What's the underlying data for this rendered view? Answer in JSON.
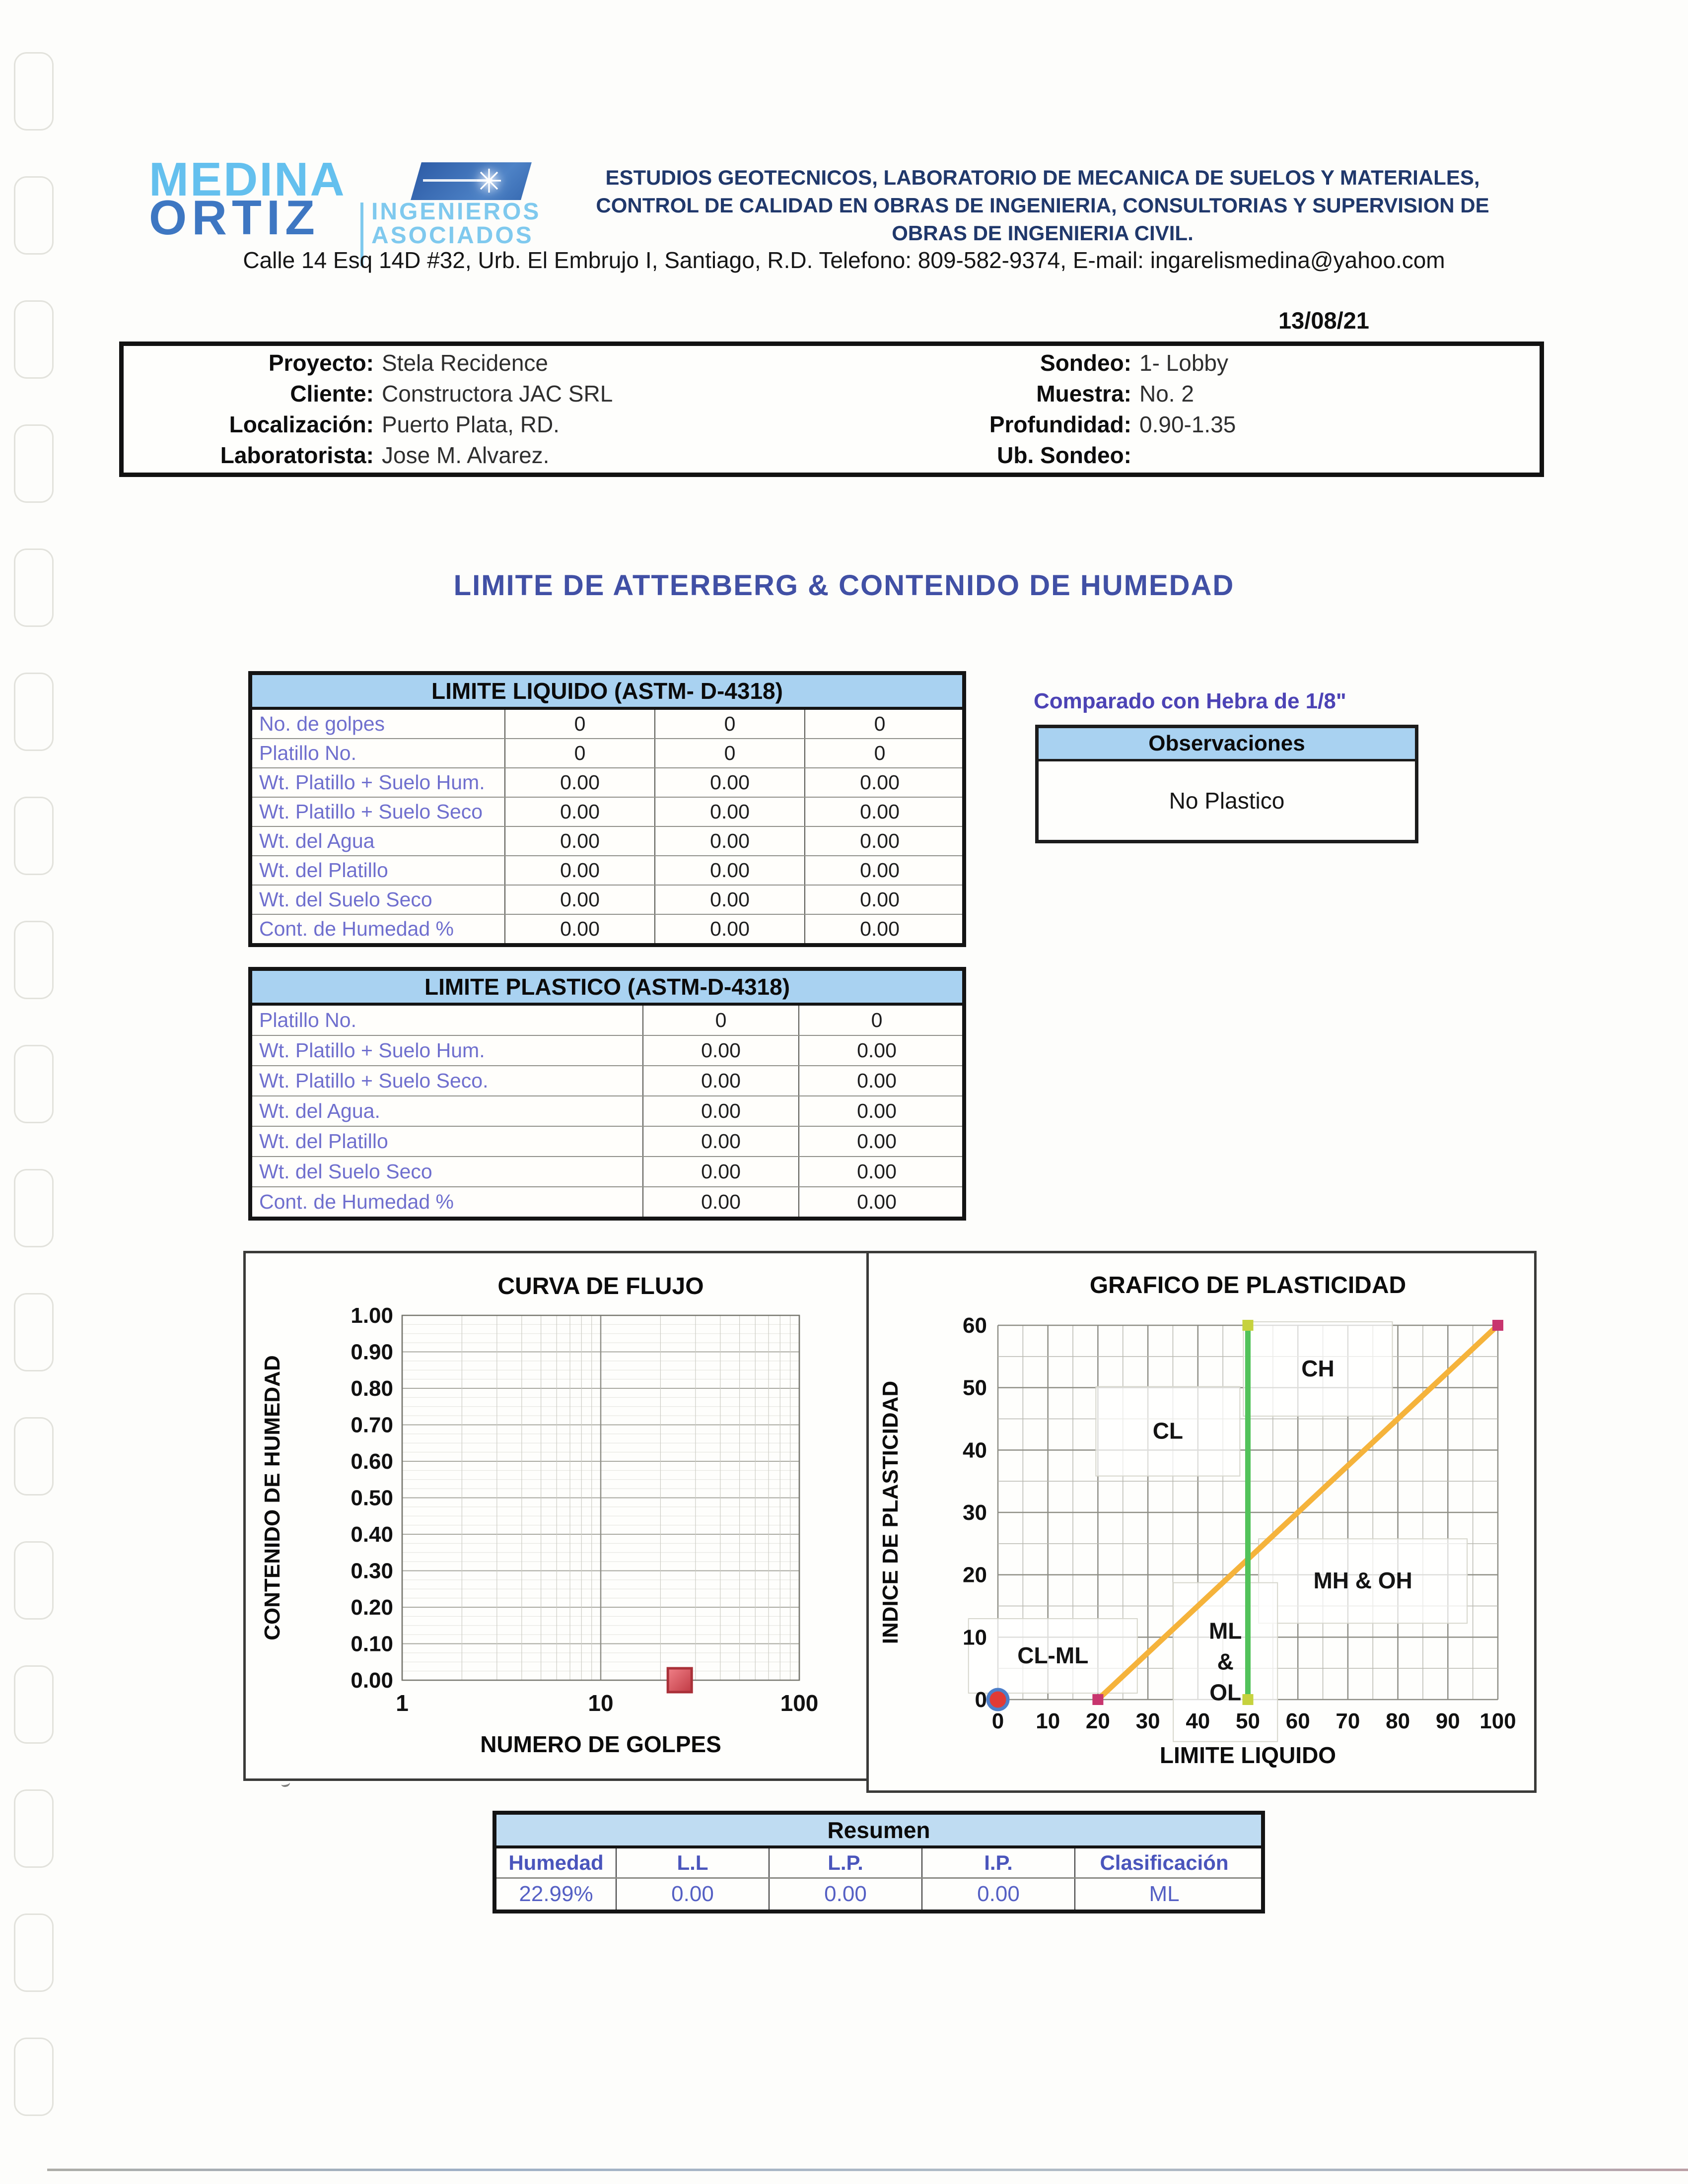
{
  "document": {
    "date": "13/08/21",
    "title": "LIMITE DE ATTERBERG & CONTENIDO DE HUMEDAD"
  },
  "logo": {
    "name_top": "MEDINA",
    "name_bottom": "ORTIZ",
    "subtitle_top": "INGENIEROS",
    "subtitle_bottom": "ASOCIADOS",
    "star_icon": "starburst"
  },
  "header": {
    "tagline_line1": "ESTUDIOS GEOTECNICOS, LABORATORIO DE MECANICA DE SUELOS Y MATERIALES,",
    "tagline_line2": "CONTROL DE CALIDAD EN OBRAS DE INGENIERIA, CONSULTORIAS Y SUPERVISION DE",
    "tagline_line3": "OBRAS DE INGENIERIA CIVIL.",
    "address": "Calle 14 Esq 14D #32, Urb. El Embrujo I, Santiago, R.D. Telefono: 809-582-9374, E-mail: ingarelismedina@yahoo.com"
  },
  "project_info": {
    "left": [
      {
        "label": "Proyecto:",
        "value": "Stela Recidence"
      },
      {
        "label": "Cliente:",
        "value": "Constructora JAC SRL"
      },
      {
        "label": "Localización:",
        "value": "Puerto Plata, RD."
      },
      {
        "label": "Laboratorista:",
        "value": "Jose M. Alvarez."
      }
    ],
    "right": [
      {
        "label": "Sondeo:",
        "value": "1- Lobby"
      },
      {
        "label": "Muestra:",
        "value": "No. 2"
      },
      {
        "label": "Profundidad:",
        "value": "0.90-1.35"
      },
      {
        "label": "Ub. Sondeo:",
        "value": ""
      }
    ]
  },
  "liquid_limit_table": {
    "title": "LIMITE LIQUIDO (ASTM- D-4318)",
    "rows": [
      {
        "label": "No. de golpes",
        "values": [
          "0",
          "0",
          "0"
        ]
      },
      {
        "label": "Platillo No.",
        "values": [
          "0",
          "0",
          "0"
        ]
      },
      {
        "label": "Wt. Platillo + Suelo Hum.",
        "values": [
          "0.00",
          "0.00",
          "0.00"
        ]
      },
      {
        "label": "Wt. Platillo + Suelo Seco",
        "values": [
          "0.00",
          "0.00",
          "0.00"
        ]
      },
      {
        "label": "Wt. del Agua",
        "values": [
          "0.00",
          "0.00",
          "0.00"
        ]
      },
      {
        "label": "Wt. del Platillo",
        "values": [
          "0.00",
          "0.00",
          "0.00"
        ]
      },
      {
        "label": "Wt. del Suelo Seco",
        "values": [
          "0.00",
          "0.00",
          "0.00"
        ]
      },
      {
        "label": "Cont. de Humedad %",
        "values": [
          "0.00",
          "0.00",
          "0.00"
        ]
      }
    ]
  },
  "plastic_limit_table": {
    "title": "LIMITE PLASTICO (ASTM-D-4318)",
    "rows": [
      {
        "label": "Platillo No.",
        "values": [
          "0",
          "0"
        ]
      },
      {
        "label": "Wt. Platillo + Suelo Hum.",
        "values": [
          "0.00",
          "0.00"
        ]
      },
      {
        "label": "Wt. Platillo + Suelo Seco.",
        "values": [
          "0.00",
          "0.00"
        ]
      },
      {
        "label": "Wt. del Agua.",
        "values": [
          "0.00",
          "0.00"
        ]
      },
      {
        "label": "Wt. del Platillo",
        "values": [
          "0.00",
          "0.00"
        ]
      },
      {
        "label": "Wt. del Suelo Seco",
        "values": [
          "0.00",
          "0.00"
        ]
      },
      {
        "label": "Cont. de Humedad %",
        "values": [
          "0.00",
          "0.00"
        ]
      }
    ]
  },
  "observations": {
    "note": "Comparado con Hebra de 1/8\"",
    "title": "Observaciones",
    "content": "No Plastico"
  },
  "chart_data": [
    {
      "type": "scatter",
      "title": "CURVA DE FLUJO",
      "xlabel": "NUMERO DE GOLPES",
      "ylabel": "CONTENIDO DE HUMEDAD",
      "x_scale": "log",
      "xlim": [
        1,
        100
      ],
      "x_ticks": [
        1,
        10,
        100
      ],
      "ylim": [
        0,
        1.0
      ],
      "y_ticks": [
        "1.00",
        "0.90",
        "0.80",
        "0.70",
        "0.60",
        "0.50",
        "0.40",
        "0.30",
        "0.20",
        "0.10",
        "0.00"
      ],
      "grid": true,
      "points": [
        {
          "x": 25,
          "y": 0.0,
          "marker": "square",
          "color": "#D94F5C"
        }
      ]
    },
    {
      "type": "line",
      "title": "GRAFICO DE PLASTICIDAD",
      "xlabel": "LIMITE LIQUIDO",
      "ylabel": "INDICE DE PLASTICIDAD",
      "xlim": [
        0,
        100
      ],
      "ylim": [
        0,
        60
      ],
      "x_ticks": [
        0,
        10,
        20,
        30,
        40,
        50,
        60,
        70,
        80,
        90,
        100
      ],
      "y_ticks": [
        0,
        10,
        20,
        30,
        40,
        50,
        60
      ],
      "grid": true,
      "grid_step": 5,
      "series": [
        {
          "name": "A-line",
          "color": "#F5B33B",
          "points": [
            [
              20,
              0
            ],
            [
              100,
              60
            ]
          ],
          "endpoint_color": "#C8356E"
        },
        {
          "name": "LL-50-line",
          "color": "#52C25A",
          "points": [
            [
              50,
              0
            ],
            [
              50,
              60
            ]
          ],
          "endpoint_color": "#C6D23E"
        }
      ],
      "points": [
        {
          "x": 0,
          "y": 0,
          "marker": "circle",
          "fill": "#E23B35",
          "ring": "#4E7FC9"
        }
      ],
      "zone_labels": [
        {
          "text": "CL-ML",
          "x": 11,
          "y": 7
        },
        {
          "text": "CL",
          "x": 34,
          "y": 43
        },
        {
          "text": "CH",
          "x": 64,
          "y": 53
        },
        {
          "text": "MH & OH",
          "x": 73,
          "y": 19
        },
        {
          "text": "ML\n&\nOL",
          "x": 45.5,
          "y": 6
        }
      ]
    }
  ],
  "resumen_table": {
    "title": "Resumen",
    "headers": [
      "Humedad",
      "L.L",
      "L.P.",
      "I.P.",
      "Clasificación"
    ],
    "values": [
      "22.99%",
      "0.00",
      "0.00",
      "0.00",
      "ML"
    ]
  },
  "colors": {
    "header_navy": "#20386B",
    "title_blue": "#4150A5",
    "table_header_bg": "#A9D2F1",
    "row_label_blue": "#6F6FCE",
    "note_purple": "#4C43B5",
    "resumen_text_blue": "#4A55BC",
    "logo_light_blue": "#64C0EE",
    "logo_medium_blue": "#3E77C2",
    "a_line_orange": "#F5B33B",
    "ll50_line_green": "#52C25A",
    "endpoint_magenta": "#C8356E",
    "endpoint_yellow_green": "#C6D23E",
    "origin_red": "#E23B35",
    "origin_ring_blue": "#4E7FC9",
    "flow_marker_red": "#D94F5C"
  }
}
